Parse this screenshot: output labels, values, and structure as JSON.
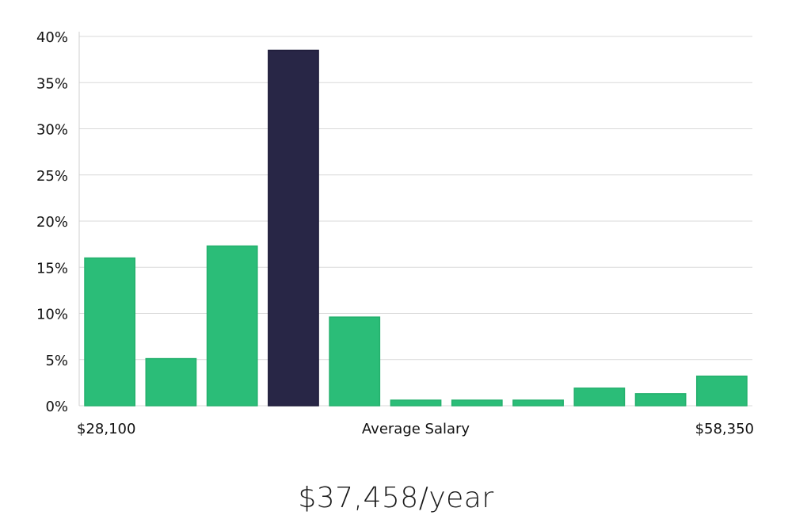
{
  "chart_data": {
    "type": "bar",
    "yticks": [
      "0%",
      "5%",
      "10%",
      "15%",
      "20%",
      "25%",
      "30%",
      "35%",
      "40%"
    ],
    "ylim": [
      0,
      40
    ],
    "grid": true,
    "xlabel": "Average Salary",
    "x_min_label": "$28,100",
    "x_max_label": "$58,350",
    "series": [
      {
        "values": [
          16.0,
          5.1,
          17.3,
          38.5,
          9.6,
          0.6,
          0.6,
          0.6,
          1.9,
          1.3,
          3.2
        ]
      }
    ],
    "highlight_index": 3,
    "colors": {
      "bar": "#2bbd78",
      "bar_stroke": "#24b06d",
      "highlight": "#282646",
      "highlight_stroke": "#1e1c3a"
    }
  },
  "summary": {
    "average_salary": "$37,458/year"
  }
}
